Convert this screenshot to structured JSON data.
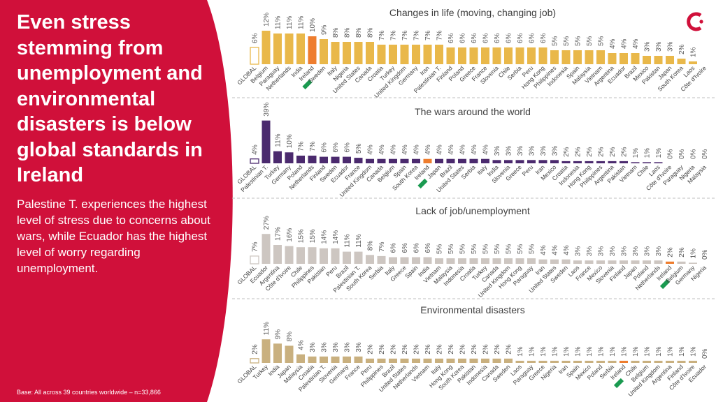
{
  "headline": "Even stress stemming from unemployment and environmental disasters is below global standards in Ireland",
  "summary": "Palestine T. experiences the highest level of stress due to concerns about wars, while Ecuador has the highest level of worry regarding unemployment.",
  "base_note": "Base: All across 39 countries worldwide – n=33,866",
  "logo": "brand-logo",
  "colors": {
    "panel": "#d0103a",
    "global": "#ffffff",
    "ireland_orange": "#ee7d2e",
    "ireland_green": "#1a9a50",
    "dashed_line": "#bfbfbf",
    "label_text": "#595959"
  },
  "chart_data": [
    {
      "type": "bar",
      "title": "Changes in life (moving, changing job)",
      "color": "#e9b84a",
      "ymax": 13,
      "highlight": "Ireland",
      "categories": [
        "GLOBAL",
        "Belgium",
        "Paraguay",
        "Netherlands",
        "India",
        "Ireland",
        "Sweden",
        "Italy",
        "Nigeria",
        "United States",
        "Canada",
        "Croatia",
        "Turkey",
        "United Kingdom",
        "Germany",
        "Iran",
        "Palestinian T.",
        "Finland",
        "Poland",
        "Greece",
        "France",
        "Slovenia",
        "Chile",
        "Serbia",
        "Peru",
        "Hong Kong",
        "Philippines",
        "Indonesia",
        "Spain",
        "Malaysia",
        "Vietnam",
        "Argentina",
        "Ecuador",
        "Brazil",
        "Mexico",
        "Pakistan",
        "Japan",
        "South Korea",
        "Laos",
        "Côte d'Ivoire"
      ],
      "values": [
        6,
        12,
        11,
        11,
        11,
        10,
        9,
        8,
        8,
        8,
        8,
        7,
        7,
        7,
        7,
        7,
        7,
        6,
        6,
        6,
        6,
        6,
        6,
        6,
        6,
        6,
        5,
        5,
        5,
        5,
        5,
        4,
        4,
        4,
        3,
        3,
        3,
        2,
        1,
        0
      ],
      "labels": [
        "6%",
        "12%",
        "11%",
        "11%",
        "11%",
        "10%",
        "9%",
        "8%",
        "8%",
        "8%",
        "8%",
        "7%",
        "7%",
        "7%",
        "7%",
        "7%",
        "7%",
        "6%",
        "6%",
        "6%",
        "6%",
        "6%",
        "6%",
        "6%",
        "6%",
        "6%",
        "5%",
        "5%",
        "5%",
        "5%",
        "5%",
        "4%",
        "4%",
        "4%",
        "3%",
        "3%",
        "3%",
        "2%",
        "1%",
        ""
      ]
    },
    {
      "type": "bar",
      "title": "The wars around the world",
      "color": "#4b2a6e",
      "ymax": 42,
      "highlight": "Ireland",
      "categories": [
        "GLOBAL",
        "Palestinian T.",
        "Turkey",
        "Germany",
        "Poland",
        "Netherlands",
        "Finland",
        "Sweden",
        "Ecuador",
        "France",
        "United Kingdom",
        "Canada",
        "Belgium",
        "Spain",
        "South Korea",
        "Ireland",
        "Japan",
        "Brazil",
        "United States",
        "Serbia",
        "Italy",
        "India",
        "Slovenia",
        "Greece",
        "Peru",
        "Iran",
        "Mexico",
        "Croatia",
        "Indonesia",
        "Hong Kong",
        "Philippines",
        "Argentina",
        "Pakistan",
        "Vietnam",
        "Chile",
        "Laos",
        "Côte d'Ivoire",
        "Paraguay",
        "Nigeria",
        "Malaysia"
      ],
      "values": [
        4,
        39,
        11,
        10,
        7,
        7,
        6,
        6,
        6,
        5,
        4,
        4,
        4,
        4,
        4,
        4,
        4,
        4,
        4,
        4,
        4,
        3,
        3,
        3,
        3,
        3,
        3,
        2,
        2,
        2,
        2,
        2,
        2,
        1,
        1,
        1,
        0,
        0,
        0,
        0
      ],
      "labels": [
        "4%",
        "39%",
        "11%",
        "10%",
        "7%",
        "7%",
        "6%",
        "6%",
        "6%",
        "5%",
        "4%",
        "4%",
        "4%",
        "4%",
        "4%",
        "4%",
        "4%",
        "4%",
        "4%",
        "4%",
        "4%",
        "3%",
        "3%",
        "3%",
        "3%",
        "3%",
        "3%",
        "2%",
        "2%",
        "2%",
        "2%",
        "2%",
        "2%",
        "1%",
        "1%",
        "1%",
        "0%",
        "0%",
        "0%",
        "0%"
      ]
    },
    {
      "type": "bar",
      "title": "Lack of job/unemployment",
      "color": "#cdc6c1",
      "ymax": 29,
      "highlight": "Ireland",
      "categories": [
        "GLOBAL",
        "Ecuador",
        "Argentina",
        "Côte d'Ivoire",
        "Chile",
        "Philippines",
        "Pakistan",
        "Peru",
        "Brazil",
        "Palestinian T.",
        "South Korea",
        "Serbia",
        "Italy",
        "Greece",
        "Spain",
        "India",
        "Vietnam",
        "Malaysia",
        "Indonesia",
        "Croatia",
        "Turkey",
        "Canada",
        "United Kingdom",
        "Hong Kong",
        "Paraguay",
        "Iran",
        "United States",
        "Sweden",
        "Laos",
        "France",
        "Mexico",
        "Slovenia",
        "Finland",
        "Japan",
        "Poland",
        "Netherlands",
        "Ireland",
        "Belgium",
        "Germany",
        "Nigeria"
      ],
      "values": [
        7,
        27,
        17,
        16,
        15,
        15,
        14,
        14,
        11,
        11,
        8,
        7,
        6,
        6,
        6,
        6,
        5,
        5,
        5,
        5,
        5,
        5,
        5,
        5,
        5,
        4,
        4,
        4,
        3,
        3,
        3,
        3,
        3,
        3,
        3,
        3,
        2,
        2,
        1,
        0
      ],
      "labels": [
        "7%",
        "27%",
        "17%",
        "16%",
        "15%",
        "15%",
        "14%",
        "14%",
        "11%",
        "11%",
        "8%",
        "7%",
        "6%",
        "6%",
        "6%",
        "6%",
        "5%",
        "5%",
        "5%",
        "5%",
        "5%",
        "5%",
        "5%",
        "5%",
        "5%",
        "4%",
        "4%",
        "4%",
        "3%",
        "3%",
        "3%",
        "3%",
        "3%",
        "3%",
        "3%",
        "3%",
        "2%",
        "2%",
        "1%",
        "0%"
      ]
    },
    {
      "type": "bar",
      "title": "Environmental disasters",
      "color": "#c9b07f",
      "ymax": 13,
      "highlight": "Ireland",
      "categories": [
        "GLOBAL",
        "Turkey",
        "India",
        "Japan",
        "Malaysia",
        "Croatia",
        "Palestinian T.",
        "Slovenia",
        "Germany",
        "France",
        "Peru",
        "Philippines",
        "Brazil",
        "United States",
        "Netherlands",
        "Vietnam",
        "Italy",
        "Hong Kong",
        "South Korea",
        "Pakistan",
        "Indonesia",
        "Canada",
        "Sweden",
        "Laos",
        "Paraguay",
        "Greece",
        "Nigeria",
        "Iran",
        "Spain",
        "Mexico",
        "Poland",
        "Serbia",
        "Ireland",
        "Chile",
        "Belgium",
        "United Kingdom",
        "Argentina",
        "Finland",
        "Côte d'Ivoire",
        "Ecuador"
      ],
      "values": [
        2,
        11,
        9,
        8,
        4,
        3,
        3,
        3,
        3,
        3,
        2,
        2,
        2,
        2,
        2,
        2,
        2,
        2,
        2,
        2,
        2,
        2,
        2,
        1,
        1,
        1,
        1,
        1,
        1,
        1,
        1,
        1,
        1,
        1,
        1,
        1,
        1,
        1,
        1,
        0
      ],
      "labels": [
        "2%",
        "11%",
        "9%",
        "8%",
        "4%",
        "3%",
        "3%",
        "3%",
        "3%",
        "3%",
        "2%",
        "2%",
        "2%",
        "2%",
        "2%",
        "2%",
        "2%",
        "2%",
        "2%",
        "2%",
        "2%",
        "2%",
        "2%",
        "1%",
        "1%",
        "1%",
        "1%",
        "1%",
        "1%",
        "1%",
        "1%",
        "1%",
        "1%",
        "1%",
        "1%",
        "1%",
        "1%",
        "1%",
        "1%",
        "0%"
      ]
    }
  ]
}
